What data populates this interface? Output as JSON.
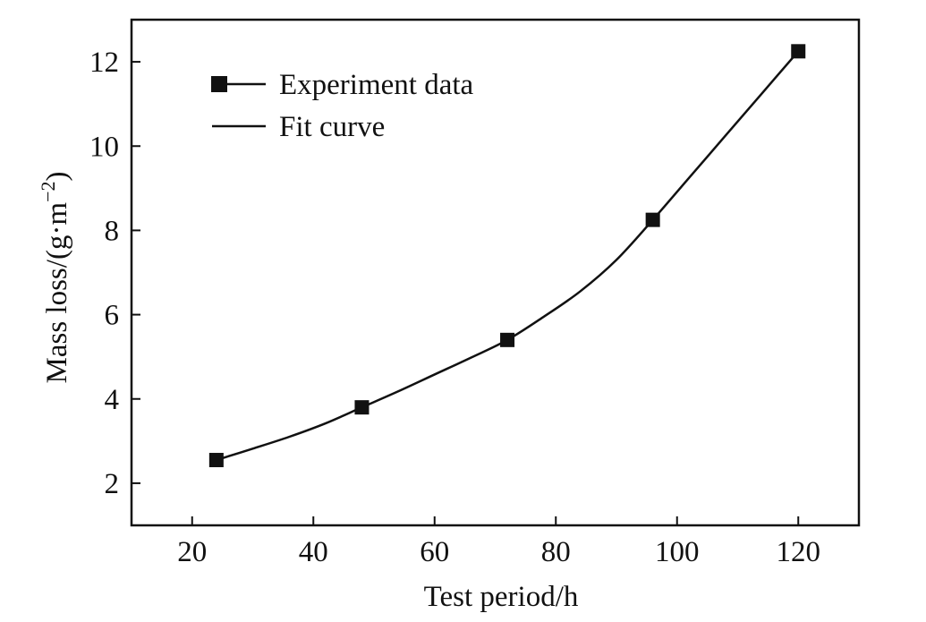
{
  "chart_data": {
    "type": "line",
    "xlabel": "Test period/h",
    "ylabel": "Mass loss/(g·m",
    "ylabel_sup": "−2",
    "ylabel_close": ")",
    "xlim": [
      10,
      130
    ],
    "ylim": [
      1,
      13
    ],
    "xticks": [
      20,
      40,
      60,
      80,
      100,
      120
    ],
    "yticks": [
      2,
      4,
      6,
      8,
      10,
      12
    ],
    "grid": false,
    "legend_position": "top-left",
    "series": [
      {
        "name": "Experiment data",
        "style": "markers",
        "marker": "square",
        "x": [
          24,
          48,
          72,
          96,
          120
        ],
        "y": [
          2.55,
          3.8,
          5.4,
          8.25,
          12.25
        ]
      },
      {
        "name": "Fit curve",
        "style": "line",
        "x": [
          24,
          30,
          36,
          42,
          48,
          54,
          60,
          66,
          72,
          78,
          84,
          90,
          96,
          102,
          108,
          114,
          120
        ],
        "y": [
          2.55,
          2.82,
          3.1,
          3.42,
          3.8,
          4.18,
          4.58,
          4.98,
          5.4,
          5.95,
          6.55,
          7.3,
          8.25,
          9.25,
          10.25,
          11.25,
          12.25
        ]
      }
    ],
    "colors": {
      "line": "#111111",
      "marker": "#111111",
      "axis": "#111111"
    }
  }
}
